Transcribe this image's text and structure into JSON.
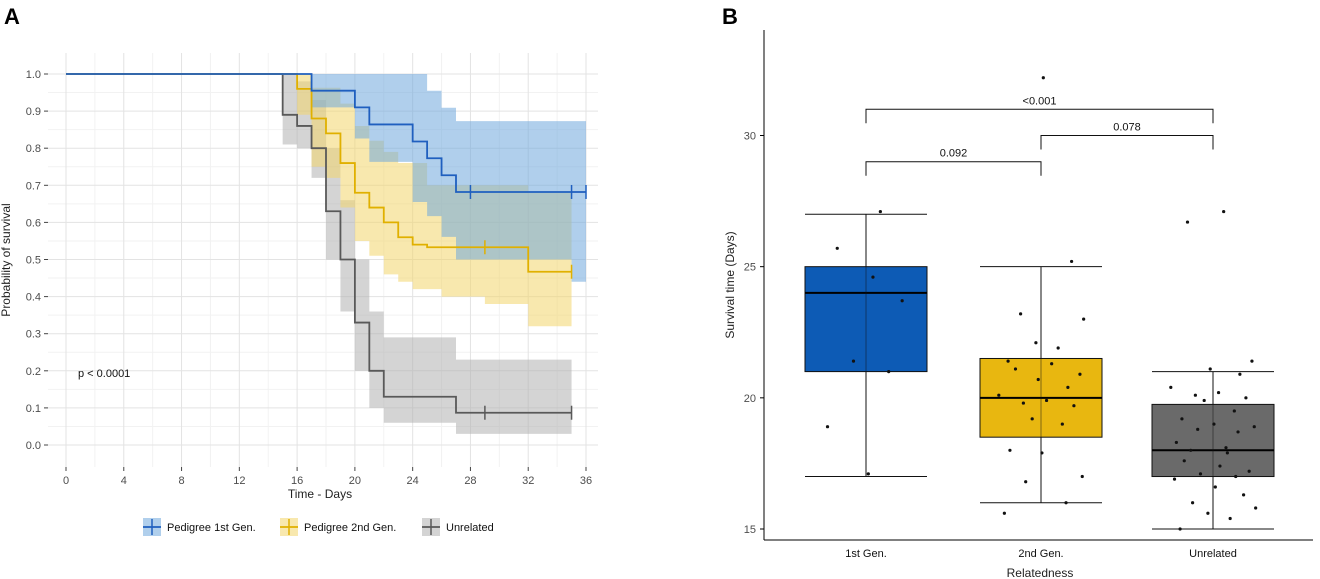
{
  "panels": {
    "a_label": "A",
    "b_label": "B"
  },
  "chart_data": [
    {
      "type": "line",
      "subtype": "kaplan-meier",
      "title": "",
      "xlabel": "Time - Days",
      "ylabel": "Probability of survival",
      "xlim": [
        0,
        36
      ],
      "ylim": [
        0,
        1
      ],
      "xticks": [
        0,
        4,
        8,
        12,
        16,
        20,
        24,
        28,
        32,
        36
      ],
      "yticks": [
        0.0,
        0.1,
        0.2,
        0.3,
        0.4,
        0.5,
        0.6,
        0.7,
        0.8,
        0.9,
        1.0
      ],
      "grid": true,
      "annotation": "p < 0.0001",
      "legend_position": "bottom",
      "series": [
        {
          "name": "Pedigree 1st Gen.",
          "color": "#1f5fbf",
          "fill": "#6fa8dc",
          "steps": [
            [
              0,
              1.0
            ],
            [
              17,
              0.955
            ],
            [
              20,
              0.91
            ],
            [
              21,
              0.864
            ],
            [
              24,
              0.818
            ],
            [
              25,
              0.773
            ],
            [
              26,
              0.727
            ],
            [
              27,
              0.682
            ],
            [
              36,
              0.682
            ]
          ],
          "upper": [
            [
              0,
              1.0
            ],
            [
              17,
              1.0
            ],
            [
              25,
              0.955
            ],
            [
              26,
              0.909
            ],
            [
              27,
              0.873
            ],
            [
              36,
              0.873
            ]
          ],
          "lower": [
            [
              0,
              1.0
            ],
            [
              17,
              0.91
            ],
            [
              20,
              0.826
            ],
            [
              21,
              0.763
            ],
            [
              24,
              0.655
            ],
            [
              25,
              0.617
            ],
            [
              26,
              0.561
            ],
            [
              27,
              0.5
            ],
            [
              35,
              0.44
            ],
            [
              36,
              0.44
            ]
          ],
          "censor": [
            28,
            35,
            36
          ]
        },
        {
          "name": "Pedigree 2nd Gen.",
          "color": "#e0b000",
          "fill": "#f2d66b",
          "steps": [
            [
              0,
              1.0
            ],
            [
              16,
              0.96
            ],
            [
              17,
              0.88
            ],
            [
              18,
              0.84
            ],
            [
              19,
              0.76
            ],
            [
              20,
              0.68
            ],
            [
              21,
              0.64
            ],
            [
              22,
              0.6
            ],
            [
              23,
              0.56
            ],
            [
              24,
              0.54
            ],
            [
              25,
              0.533
            ],
            [
              32,
              0.467
            ],
            [
              35,
              0.467
            ]
          ],
          "upper": [
            [
              0,
              1.0
            ],
            [
              16,
              1.0
            ],
            [
              17,
              0.963
            ],
            [
              19,
              0.92
            ],
            [
              20,
              0.86
            ],
            [
              21,
              0.82
            ],
            [
              22,
              0.79
            ],
            [
              23,
              0.76
            ],
            [
              25,
              0.7
            ],
            [
              32,
              0.68
            ],
            [
              35,
              0.68
            ]
          ],
          "lower": [
            [
              0,
              1.0
            ],
            [
              16,
              0.89
            ],
            [
              17,
              0.75
            ],
            [
              18,
              0.72
            ],
            [
              19,
              0.64
            ],
            [
              20,
              0.55
            ],
            [
              21,
              0.51
            ],
            [
              22,
              0.46
            ],
            [
              23,
              0.44
            ],
            [
              24,
              0.42
            ],
            [
              26,
              0.4
            ],
            [
              28,
              0.4
            ],
            [
              29,
              0.38
            ],
            [
              32,
              0.32
            ],
            [
              35,
              0.32
            ]
          ],
          "censor": [
            29,
            35
          ]
        },
        {
          "name": "Unrelated",
          "color": "#595959",
          "fill": "#b0b0b0",
          "steps": [
            [
              0,
              1.0
            ],
            [
              15,
              0.89
            ],
            [
              16,
              0.86
            ],
            [
              17,
              0.8
            ],
            [
              18,
              0.63
            ],
            [
              19,
              0.5
            ],
            [
              20,
              0.33
            ],
            [
              21,
              0.2
            ],
            [
              22,
              0.13
            ],
            [
              27,
              0.087
            ],
            [
              35,
              0.087
            ]
          ],
          "upper": [
            [
              0,
              1.0
            ],
            [
              15,
              1.0
            ],
            [
              16,
              0.98
            ],
            [
              17,
              0.93
            ],
            [
              18,
              0.8
            ],
            [
              19,
              0.66
            ],
            [
              20,
              0.5
            ],
            [
              21,
              0.36
            ],
            [
              22,
              0.29
            ],
            [
              27,
              0.23
            ],
            [
              35,
              0.23
            ]
          ],
          "lower": [
            [
              0,
              1.0
            ],
            [
              15,
              0.81
            ],
            [
              16,
              0.8
            ],
            [
              17,
              0.72
            ],
            [
              18,
              0.5
            ],
            [
              19,
              0.36
            ],
            [
              20,
              0.2
            ],
            [
              21,
              0.1
            ],
            [
              22,
              0.06
            ],
            [
              27,
              0.03
            ],
            [
              35,
              0.03
            ]
          ],
          "censor": [
            29,
            35
          ]
        }
      ]
    },
    {
      "type": "box",
      "title": "",
      "xlabel": "Relatedness",
      "ylabel": "Survival time (Days)",
      "ylim": [
        14.8,
        33.5
      ],
      "yticks": [
        15,
        20,
        25,
        30
      ],
      "categories": [
        "1st Gen.",
        "2nd Gen.",
        "Unrelated"
      ],
      "series": [
        {
          "name": "1st Gen.",
          "color": "#0d5bb5",
          "min": 17,
          "q1": 21,
          "median": 24,
          "q3": 25,
          "max": 27,
          "points": [
            27.1,
            25.7,
            24.6,
            23.7,
            21.4,
            21.0,
            18.9,
            17.1
          ]
        },
        {
          "name": "2nd Gen.",
          "color": "#e8b710",
          "min": 16,
          "q1": 18.5,
          "median": 20,
          "q3": 21.5,
          "max": 25,
          "points": [
            32.2,
            25.2,
            23.2,
            23.0,
            22.1,
            21.9,
            21.4,
            21.3,
            21.1,
            20.9,
            20.7,
            20.4,
            20.1,
            19.9,
            19.8,
            19.7,
            19.2,
            19.0,
            18.0,
            17.9,
            17.0,
            16.8,
            16.0,
            15.6
          ]
        },
        {
          "name": "Unrelated",
          "color": "#6a6a6a",
          "min": 15,
          "q1": 17,
          "median": 18,
          "q3": 19.75,
          "max": 21,
          "points": [
            27.1,
            26.7,
            21.4,
            21.1,
            20.9,
            20.4,
            20.2,
            20.1,
            20.0,
            19.9,
            19.5,
            19.2,
            19.0,
            18.9,
            18.8,
            18.7,
            18.3,
            18.1,
            18.0,
            17.9,
            17.6,
            17.4,
            17.2,
            17.1,
            17.0,
            16.9,
            16.6,
            16.3,
            16.0,
            15.8,
            15.6,
            15.4,
            15.0
          ]
        }
      ],
      "comparisons": [
        {
          "groups": [
            "1st Gen.",
            "Unrelated"
          ],
          "label": "<0.001",
          "y": 31.0
        },
        {
          "groups": [
            "2nd Gen.",
            "Unrelated"
          ],
          "label": "0.078",
          "y": 30.0
        },
        {
          "groups": [
            "1st Gen.",
            "2nd Gen."
          ],
          "label": "0.092",
          "y": 29.0
        }
      ]
    }
  ]
}
